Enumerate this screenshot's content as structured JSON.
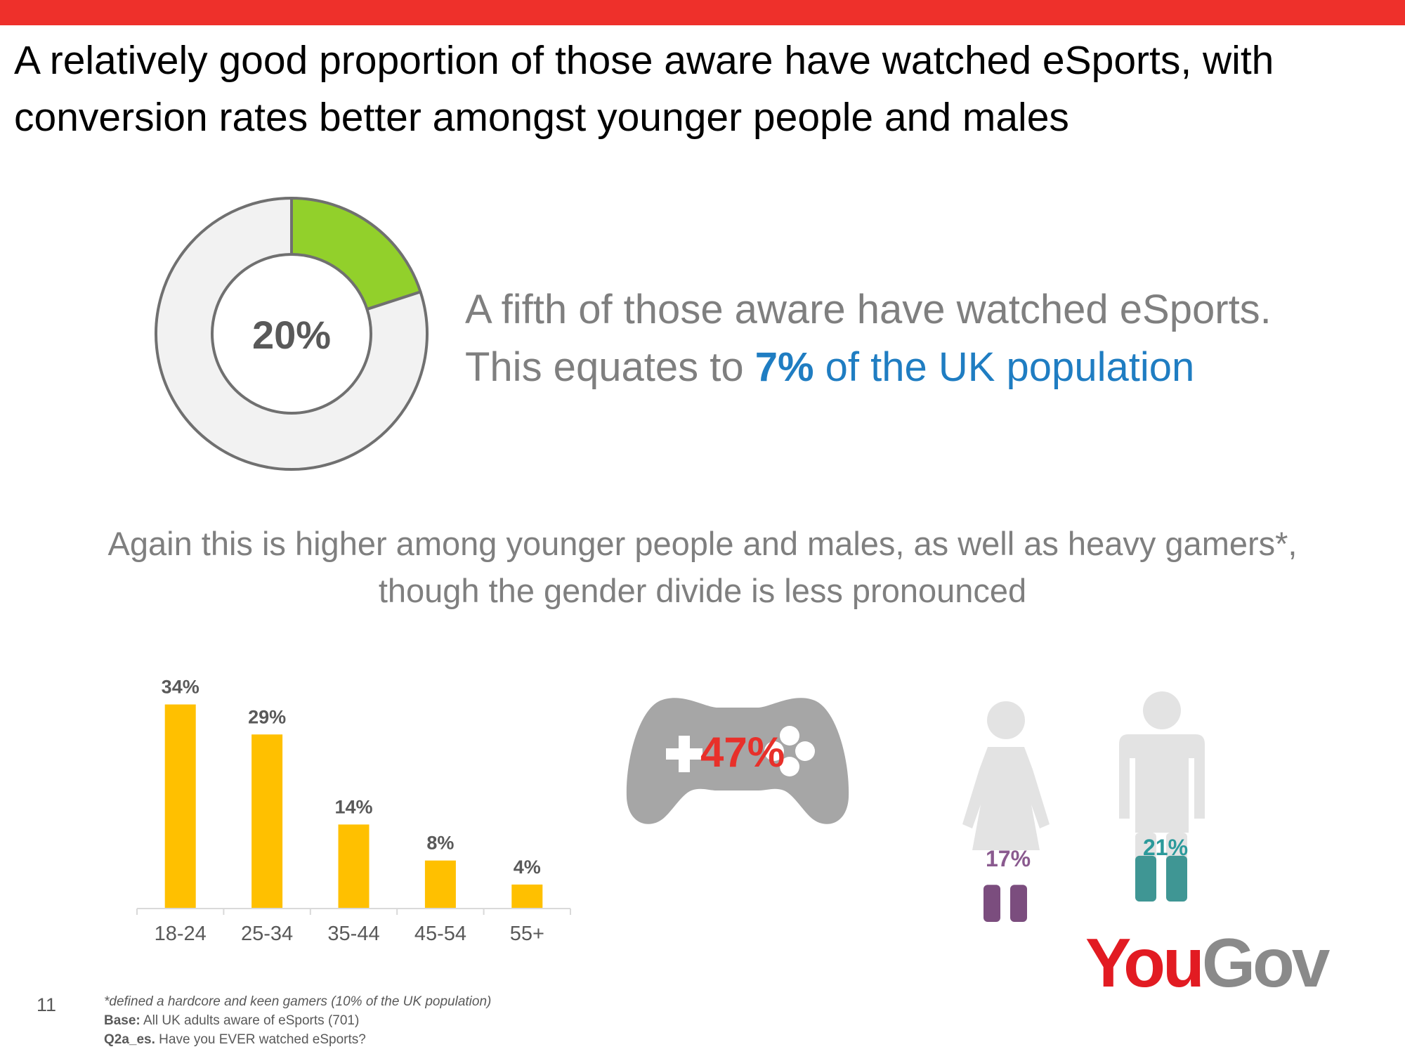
{
  "title": "A relatively good proportion of those aware have watched eSports, with conversion rates better amongst younger people and males",
  "headline": {
    "line1": "A fifth of those aware have watched eSports.",
    "line2_prefix": "This equates to ",
    "line2_bold": "7%",
    "line2_rest": " of the UK population"
  },
  "subhead": {
    "line1": "Again this is higher among younger people and males, as well as heavy gamers*,",
    "line2": "though the gender divide is less pronounced"
  },
  "colors": {
    "accent_bar": "#ee302b",
    "donut_fill": "#92d02b",
    "donut_rest": "#f2f2f2",
    "donut_stroke": "#707070",
    "bars": "#ffc000",
    "highlight_blue": "#1f7dc2",
    "gamepad": "#a6a6a6",
    "gamepad_value": "#e8302a",
    "female": "#7b4d7e",
    "male": "#3f9694",
    "silhouette": "#e3e3e3"
  },
  "chart_data": [
    {
      "type": "pie",
      "variant": "donut",
      "values": [
        20,
        80
      ],
      "center_label": "20%"
    },
    {
      "type": "bar",
      "categories": [
        "18-24",
        "25-34",
        "35-44",
        "45-54",
        "55+"
      ],
      "values": [
        34,
        29,
        14,
        8,
        4
      ],
      "labels": [
        "34%",
        "29%",
        "14%",
        "8%",
        "4%"
      ],
      "ylim": [
        0,
        35
      ],
      "grid": false
    },
    {
      "type": "bar",
      "variant": "icon-fill",
      "categories": [
        "Female",
        "Male"
      ],
      "values": [
        17,
        21
      ],
      "labels": [
        "17%",
        "21%"
      ]
    }
  ],
  "gamers": {
    "value": 47,
    "label": "47%",
    "icon": "gamepad-icon"
  },
  "logo": {
    "you": "You",
    "gov": "Gov"
  },
  "page_number": "11",
  "footnotes": {
    "note": "*defined a hardcore and keen gamers (10% of the UK population)",
    "base_label": "Base:",
    "base_text": " All UK adults aware of eSports (701)",
    "question_label": "Q2a_es.",
    "question_text": " Have you EVER watched eSports?"
  }
}
